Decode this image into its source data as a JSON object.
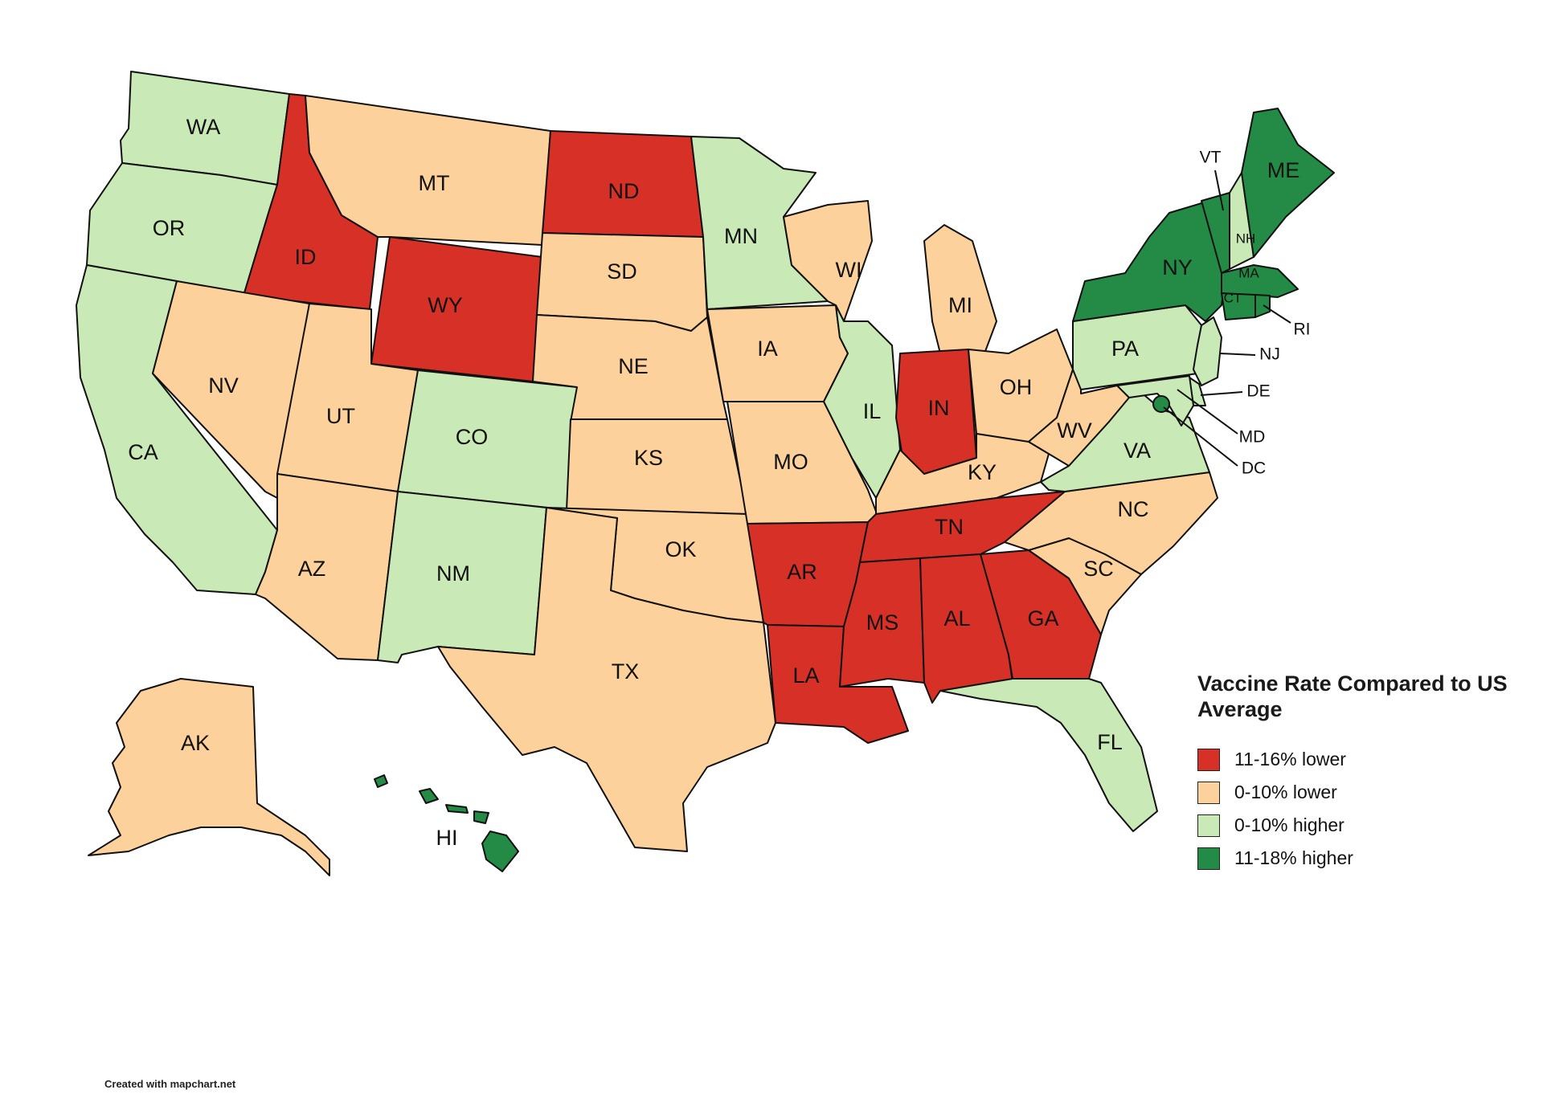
{
  "colors": {
    "lower_11_16": "#d73027",
    "lower_0_10": "#fdd19b",
    "higher_0_10": "#c9e9b6",
    "higher_11_18": "#238b45"
  },
  "legend": {
    "title": "Vaccine Rate Compared to US Average",
    "items": [
      {
        "key": "lower_11_16",
        "label": "11-16% lower"
      },
      {
        "key": "lower_0_10",
        "label": "0-10% lower"
      },
      {
        "key": "higher_0_10",
        "label": "0-10% higher"
      },
      {
        "key": "higher_11_18",
        "label": "11-18% higher"
      }
    ]
  },
  "states": {
    "WA": {
      "label": "WA",
      "category": "higher_0_10"
    },
    "OR": {
      "label": "OR",
      "category": "higher_0_10"
    },
    "CA": {
      "label": "CA",
      "category": "higher_0_10"
    },
    "ID": {
      "label": "ID",
      "category": "lower_11_16"
    },
    "NV": {
      "label": "NV",
      "category": "lower_0_10"
    },
    "MT": {
      "label": "MT",
      "category": "lower_0_10"
    },
    "WY": {
      "label": "WY",
      "category": "lower_11_16"
    },
    "UT": {
      "label": "UT",
      "category": "lower_0_10"
    },
    "AZ": {
      "label": "AZ",
      "category": "lower_0_10"
    },
    "CO": {
      "label": "CO",
      "category": "higher_0_10"
    },
    "NM": {
      "label": "NM",
      "category": "higher_0_10"
    },
    "ND": {
      "label": "ND",
      "category": "lower_11_16"
    },
    "SD": {
      "label": "SD",
      "category": "lower_0_10"
    },
    "NE": {
      "label": "NE",
      "category": "lower_0_10"
    },
    "KS": {
      "label": "KS",
      "category": "lower_0_10"
    },
    "OK": {
      "label": "OK",
      "category": "lower_0_10"
    },
    "TX": {
      "label": "TX",
      "category": "lower_0_10"
    },
    "MN": {
      "label": "MN",
      "category": "higher_0_10"
    },
    "IA": {
      "label": "IA",
      "category": "lower_0_10"
    },
    "MO": {
      "label": "MO",
      "category": "lower_0_10"
    },
    "AR": {
      "label": "AR",
      "category": "lower_11_16"
    },
    "LA": {
      "label": "LA",
      "category": "lower_11_16"
    },
    "WI": {
      "label": "WI",
      "category": "lower_0_10"
    },
    "IL": {
      "label": "IL",
      "category": "higher_0_10"
    },
    "MI": {
      "label": "MI",
      "category": "lower_0_10"
    },
    "IN": {
      "label": "IN",
      "category": "lower_11_16"
    },
    "OH": {
      "label": "OH",
      "category": "lower_0_10"
    },
    "KY": {
      "label": "KY",
      "category": "lower_0_10"
    },
    "TN": {
      "label": "TN",
      "category": "lower_11_16"
    },
    "MS": {
      "label": "MS",
      "category": "lower_11_16"
    },
    "AL": {
      "label": "AL",
      "category": "lower_11_16"
    },
    "GA": {
      "label": "GA",
      "category": "lower_11_16"
    },
    "FL": {
      "label": "FL",
      "category": "higher_0_10"
    },
    "SC": {
      "label": "SC",
      "category": "lower_0_10"
    },
    "NC": {
      "label": "NC",
      "category": "lower_0_10"
    },
    "VA": {
      "label": "VA",
      "category": "higher_0_10"
    },
    "WV": {
      "label": "WV",
      "category": "lower_0_10"
    },
    "PA": {
      "label": "PA",
      "category": "higher_0_10"
    },
    "NY": {
      "label": "NY",
      "category": "higher_11_18"
    },
    "VT": {
      "label": "VT",
      "category": "higher_11_18"
    },
    "NH": {
      "label": "NH",
      "category": "higher_0_10"
    },
    "ME": {
      "label": "ME",
      "category": "higher_11_18"
    },
    "MA": {
      "label": "MA",
      "category": "higher_11_18"
    },
    "CT": {
      "label": "CT",
      "category": "higher_11_18"
    },
    "RI": {
      "label": "RI",
      "category": "higher_11_18"
    },
    "NJ": {
      "label": "NJ",
      "category": "higher_0_10"
    },
    "DE": {
      "label": "DE",
      "category": "higher_0_10"
    },
    "MD": {
      "label": "MD",
      "category": "higher_0_10"
    },
    "DC": {
      "label": "DC",
      "category": "higher_11_18"
    },
    "AK": {
      "label": "AK",
      "category": "lower_0_10"
    },
    "HI": {
      "label": "HI",
      "category": "higher_11_18"
    }
  },
  "footer": "Created with mapchart.net"
}
